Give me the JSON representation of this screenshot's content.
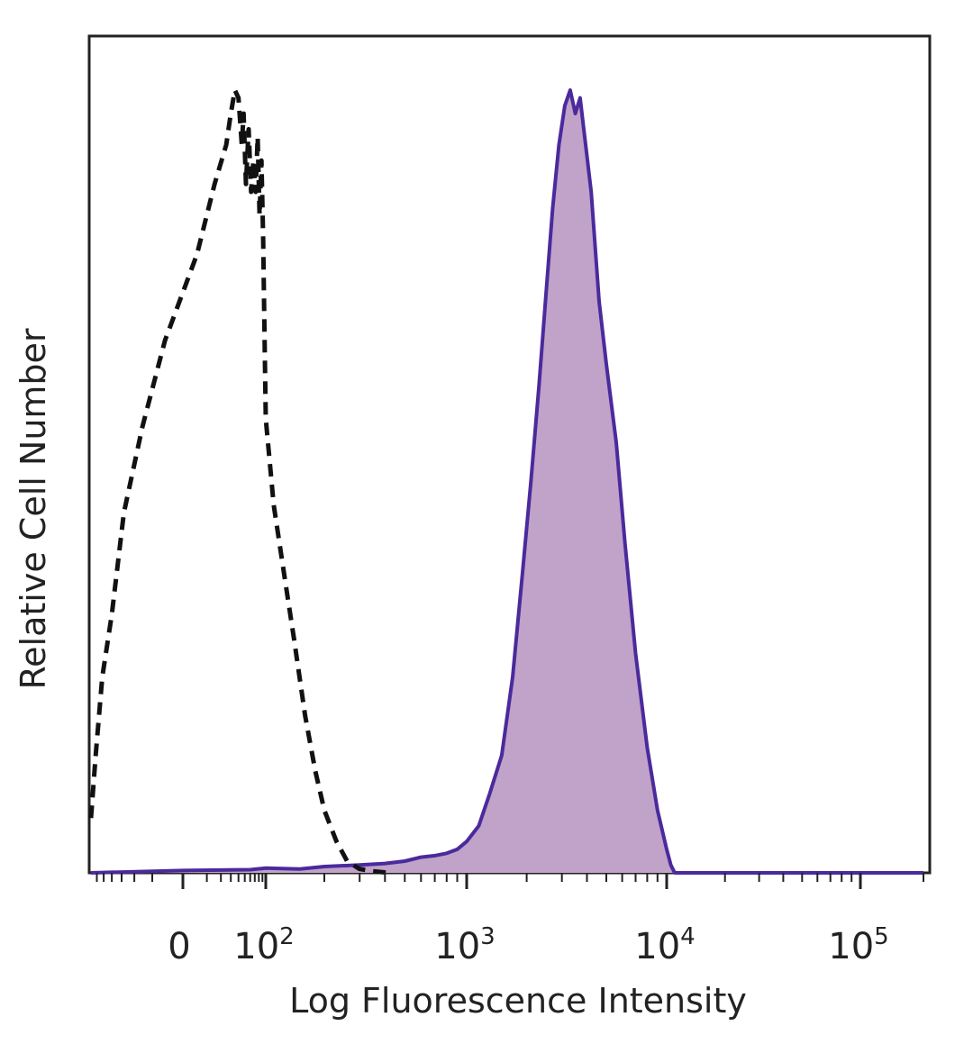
{
  "chart_data": {
    "type": "area",
    "title": "",
    "xlabel": "Log Fluorescence Intensity",
    "ylabel": "Relative Cell Number",
    "x_scale": "biexponential",
    "xlim": [
      -70,
      200000
    ],
    "ylim": [
      0,
      1
    ],
    "x_ticks": [
      {
        "value": 0,
        "label": "0"
      },
      {
        "value": 100,
        "base": "10",
        "exp": "2"
      },
      {
        "value": 1000,
        "base": "10",
        "exp": "3"
      },
      {
        "value": 10000,
        "base": "10",
        "exp": "4"
      },
      {
        "value": 100000,
        "base": "10",
        "exp": "5"
      }
    ],
    "grid": false,
    "legend": "none",
    "series": [
      {
        "style": "dashed",
        "color": "#111111",
        "fill": "none",
        "x": [
          -70,
          -62,
          -52,
          -40,
          -28,
          -15,
          -5,
          5,
          15,
          25,
          30,
          35,
          40,
          45,
          48,
          52,
          57,
          62,
          67,
          72,
          77,
          82,
          87,
          92,
          95,
          100,
          110,
          125,
          140,
          160,
          180,
          200,
          230,
          260,
          300,
          350,
          420
        ],
        "y": [
          0.07,
          0.15,
          0.25,
          0.33,
          0.46,
          0.57,
          0.68,
          0.79,
          0.88,
          0.93,
          0.97,
          1.0,
          0.99,
          0.93,
          0.97,
          0.88,
          0.95,
          0.87,
          0.91,
          0.87,
          0.94,
          0.84,
          0.91,
          0.81,
          0.72,
          0.58,
          0.47,
          0.38,
          0.3,
          0.2,
          0.13,
          0.08,
          0.04,
          0.015,
          0.005,
          0.002,
          0.0
        ]
      },
      {
        "style": "solid",
        "color": "#4a2a9c",
        "fill": "#c1a2c9",
        "x": [
          -70,
          0,
          60,
          100,
          150,
          200,
          300,
          400,
          500,
          600,
          700,
          800,
          900,
          1000,
          1150,
          1300,
          1500,
          1700,
          1900,
          2100,
          2300,
          2500,
          2700,
          2900,
          3100,
          3300,
          3500,
          3700,
          3900,
          4200,
          4600,
          5000,
          5600,
          6200,
          7000,
          8000,
          9000,
          10000,
          10500,
          11000,
          20000,
          50000,
          200000
        ],
        "y": [
          0.0,
          0.003,
          0.004,
          0.006,
          0.005,
          0.008,
          0.01,
          0.012,
          0.015,
          0.02,
          0.022,
          0.025,
          0.03,
          0.04,
          0.06,
          0.1,
          0.15,
          0.25,
          0.38,
          0.5,
          0.62,
          0.74,
          0.85,
          0.93,
          0.98,
          1.0,
          0.97,
          0.99,
          0.94,
          0.87,
          0.73,
          0.65,
          0.55,
          0.42,
          0.28,
          0.16,
          0.08,
          0.03,
          0.01,
          0.0,
          0.0,
          0.0,
          0.0
        ]
      }
    ]
  }
}
